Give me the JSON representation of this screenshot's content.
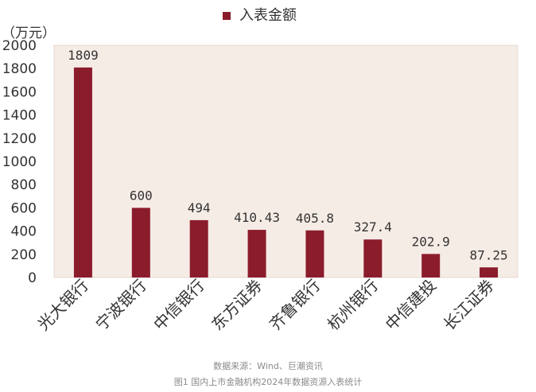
{
  "chart_data": {
    "type": "bar",
    "legend": {
      "label": "入表金额",
      "position": "top",
      "color": "#8b1c2c"
    },
    "unit_label": "（万元）",
    "categories": [
      "光大银行",
      "宁波银行",
      "中信银行",
      "东方证券",
      "齐鲁银行",
      "杭州银行",
      "中信建投",
      "长江证券"
    ],
    "values": [
      1809,
      600,
      494,
      410.43,
      405.8,
      327.4,
      202.9,
      87.25
    ],
    "data_labels": [
      "1809",
      "600",
      "494",
      "410.43",
      "405.8",
      "327.4",
      "202.9",
      "87.25"
    ],
    "yticks": [
      "0",
      "200",
      "400",
      "600",
      "800",
      "1000",
      "1200",
      "1400",
      "1600",
      "1800",
      "2000"
    ],
    "ylim": [
      0,
      2000
    ],
    "grid": false,
    "bar_color": "#8b1c2c",
    "plot_bg": "#f6ece6"
  },
  "footer": {
    "source": "数据来源：Wind、巨潮资讯",
    "caption": "图1 国内上市金融机构2024年数据资源入表统计"
  }
}
